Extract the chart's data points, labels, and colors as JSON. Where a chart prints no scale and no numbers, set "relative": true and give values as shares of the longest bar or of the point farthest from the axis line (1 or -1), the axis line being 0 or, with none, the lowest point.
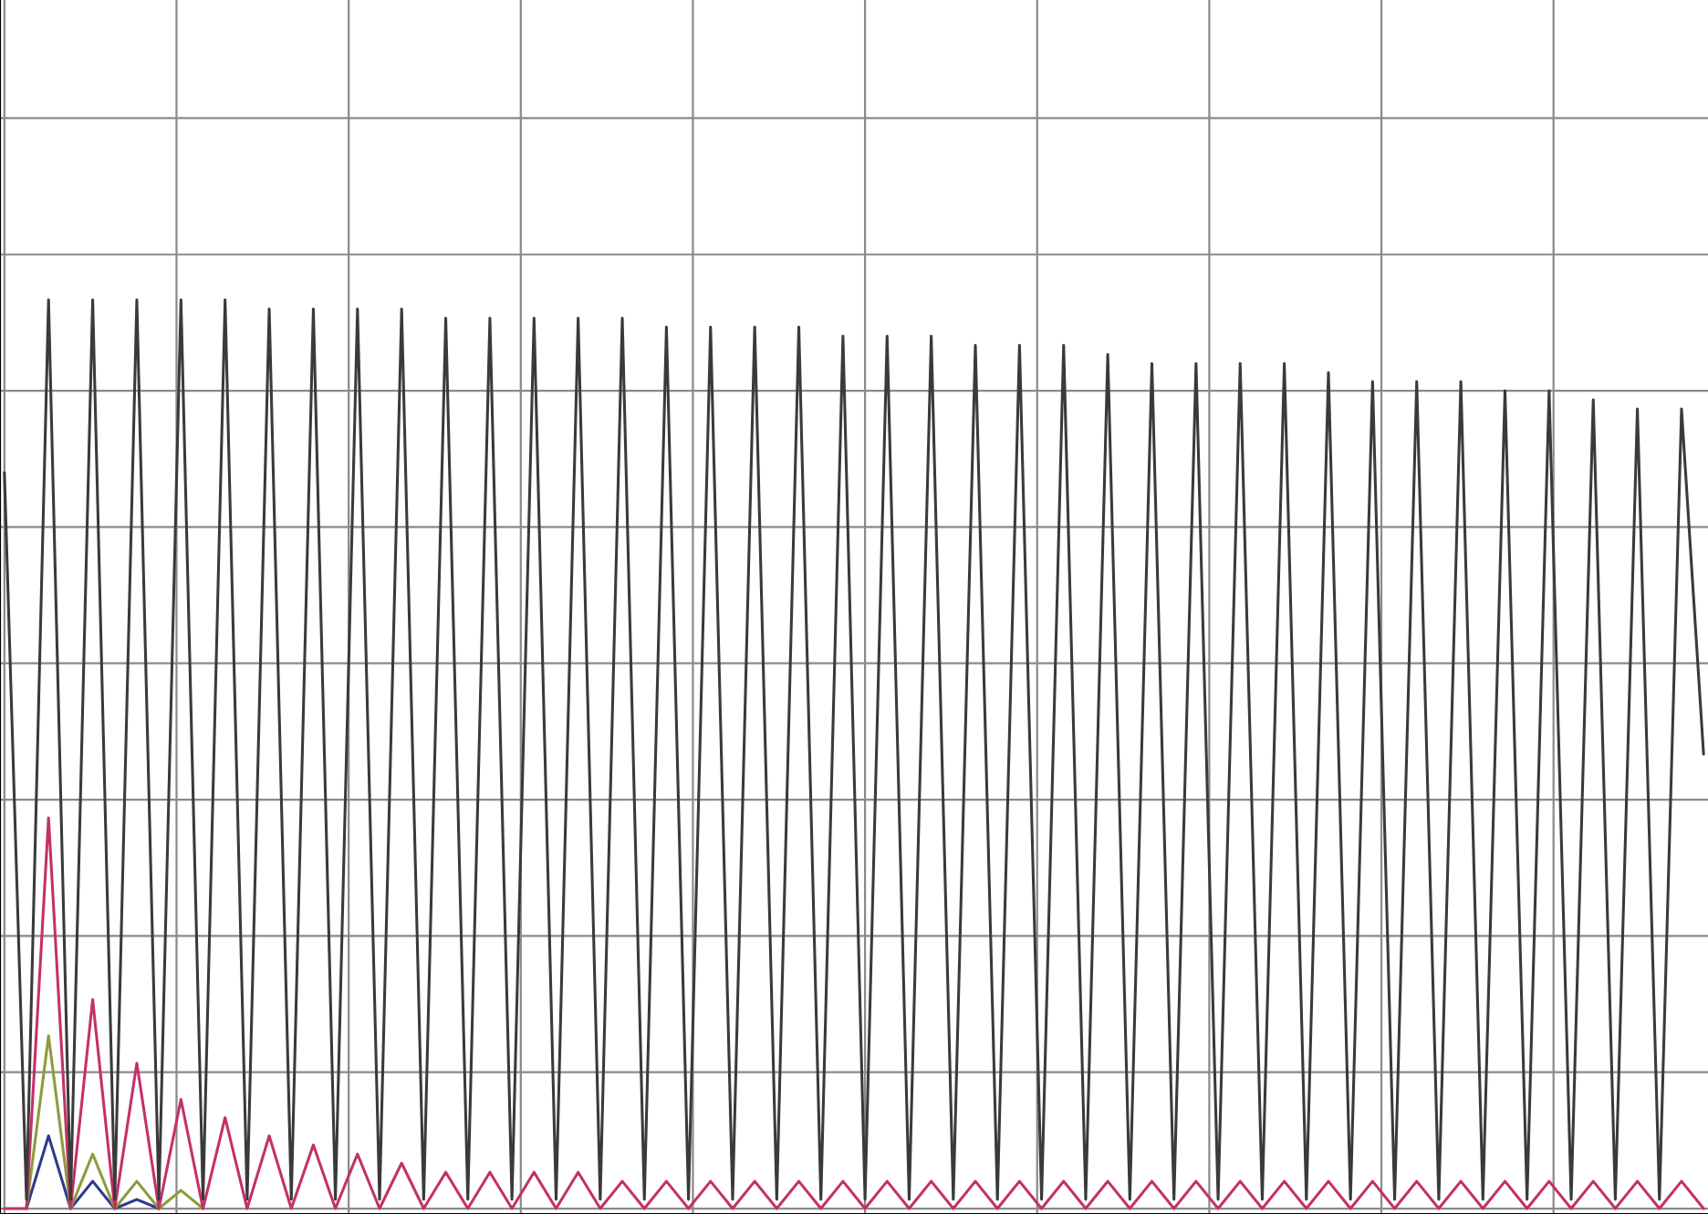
{
  "chart_data": {
    "type": "line",
    "relative": true,
    "grid": true,
    "marker": "none",
    "line_style": "solid",
    "categories": [
      null,
      null,
      null,
      null,
      null,
      null,
      null,
      null,
      null,
      null,
      null,
      null,
      null,
      null,
      null,
      null,
      null,
      null,
      null,
      null,
      null,
      null,
      null,
      null,
      null,
      null,
      null,
      null,
      null,
      null,
      null,
      null,
      null,
      null,
      null,
      null,
      null,
      null,
      null,
      null,
      null,
      null,
      null,
      null,
      null,
      null,
      null,
      null,
      null,
      null,
      null,
      null,
      null,
      null,
      null,
      null,
      null,
      null,
      null,
      null,
      null,
      null,
      null,
      null,
      null,
      null,
      null,
      null,
      null,
      null,
      null,
      null,
      null,
      null,
      null,
      null,
      null,
      null
    ],
    "series": [
      {
        "color": "#2e3a8c",
        "values": [
          null,
          0,
          0.08,
          0,
          0.03,
          0,
          0.01,
          0,
          null,
          null,
          null,
          null,
          null,
          null,
          null,
          null,
          null,
          null,
          null,
          null,
          null,
          null,
          null,
          null,
          null,
          null,
          null,
          null,
          null,
          null,
          null,
          null,
          null,
          null,
          null,
          null,
          null,
          null,
          null,
          null,
          null,
          null,
          null,
          null,
          null,
          null,
          null,
          null,
          null,
          null,
          null,
          null,
          null,
          null,
          null,
          null,
          null,
          null,
          null,
          null,
          null,
          null,
          null,
          null,
          null,
          null,
          null,
          null,
          null,
          null,
          null,
          null,
          null,
          null,
          null,
          null,
          null,
          null
        ]
      },
      {
        "color": "#8f9a3c",
        "values": [
          null,
          0,
          0.19,
          0,
          0.06,
          0,
          0.03,
          0,
          0.02,
          0,
          null,
          null,
          null,
          null,
          null,
          null,
          null,
          null,
          null,
          null,
          null,
          null,
          null,
          null,
          null,
          null,
          null,
          null,
          null,
          null,
          null,
          null,
          null,
          null,
          null,
          null,
          null,
          null,
          null,
          null,
          null,
          null,
          null,
          null,
          null,
          null,
          null,
          null,
          null,
          null,
          null,
          null,
          null,
          null,
          null,
          null,
          null,
          null,
          null,
          null,
          null,
          null,
          null,
          null,
          null,
          null,
          null,
          null,
          null,
          null,
          null,
          null,
          null,
          null,
          null,
          null,
          null,
          null
        ]
      },
      {
        "color": "#c4306a",
        "values": [
          0,
          0,
          0.43,
          0,
          0.23,
          0,
          0.16,
          0,
          0.12,
          0,
          0.1,
          0,
          0.08,
          0,
          0.07,
          0,
          0.06,
          0,
          0.05,
          0,
          0.04,
          0,
          0.04,
          0,
          0.04,
          0,
          0.04,
          0,
          0.03,
          0,
          0.03,
          0,
          0.03,
          0,
          0.03,
          0,
          0.03,
          0,
          0.03,
          0,
          0.03,
          0,
          0.03,
          0,
          0.03,
          0,
          0.03,
          0,
          0.03,
          0,
          0.03,
          0,
          0.03,
          0,
          0.03,
          0,
          0.03,
          0,
          0.03,
          0,
          0.03,
          0,
          0.03,
          0,
          0.03,
          0,
          0.03,
          0,
          0.03,
          0,
          0.03,
          0,
          0.03,
          0,
          0.03,
          0,
          0.03,
          0
        ]
      },
      {
        "color": "#3a3a3a",
        "values": [
          0.81,
          0.01,
          1.0,
          0.01,
          1.0,
          0.01,
          1.0,
          0.01,
          1.0,
          0.01,
          1.0,
          0.01,
          0.99,
          0.01,
          0.99,
          0.01,
          0.99,
          0.01,
          0.99,
          0.01,
          0.98,
          0.01,
          0.98,
          0.01,
          0.98,
          0.01,
          0.98,
          0.01,
          0.98,
          0.01,
          0.97,
          0.01,
          0.97,
          0.01,
          0.97,
          0.01,
          0.97,
          0.01,
          0.96,
          0.01,
          0.96,
          0.01,
          0.96,
          0.01,
          0.95,
          0.01,
          0.95,
          0.01,
          0.95,
          0.01,
          0.94,
          0.01,
          0.93,
          0.01,
          0.93,
          0.01,
          0.93,
          0.01,
          0.93,
          0.01,
          0.92,
          0.01,
          0.91,
          0.01,
          0.91,
          0.01,
          0.91,
          0.01,
          0.9,
          0.01,
          0.9,
          0.01,
          0.89,
          0.01,
          0.88,
          0.01,
          0.88,
          0.5
        ]
      }
    ]
  }
}
